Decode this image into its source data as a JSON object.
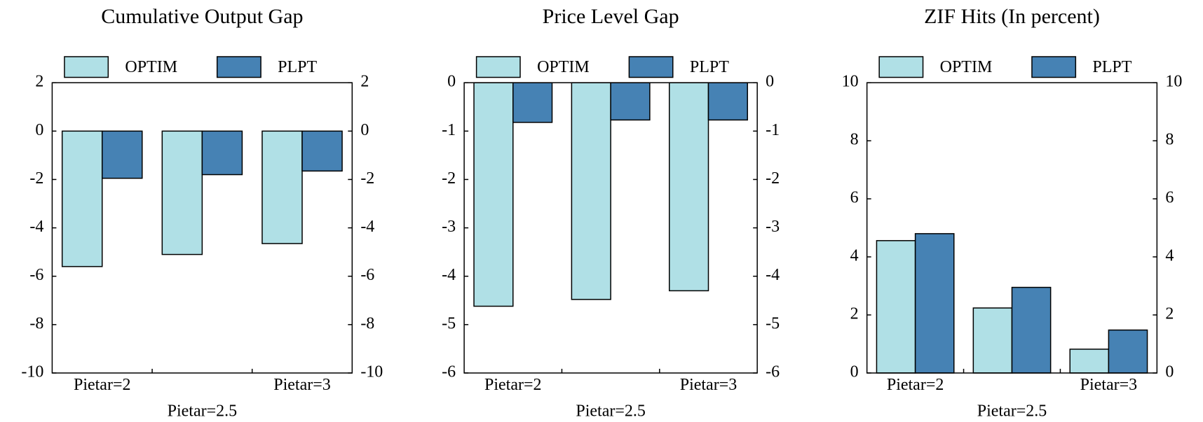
{
  "chart_data": [
    {
      "type": "bar",
      "title": "Cumulative Output Gap",
      "categories": [
        "Pietar=2",
        "Pietar=2.5",
        "Pietar=3"
      ],
      "series": [
        {
          "name": "OPTIM",
          "color": "#b0e0e6",
          "values": [
            -5.6,
            -5.1,
            -4.65
          ]
        },
        {
          "name": "PLPT",
          "color": "#4682b4",
          "values": [
            -1.95,
            -1.8,
            -1.65
          ]
        }
      ],
      "ylim": [
        -10,
        2
      ],
      "yticks": [
        -10,
        -8,
        -6,
        -4,
        -2,
        0,
        2
      ],
      "legend": "top"
    },
    {
      "type": "bar",
      "title": "Price Level Gap",
      "categories": [
        "Pietar=2",
        "Pietar=2.5",
        "Pietar=3"
      ],
      "series": [
        {
          "name": "OPTIM",
          "color": "#b0e0e6",
          "values": [
            -4.62,
            -4.48,
            -4.3
          ]
        },
        {
          "name": "PLPT",
          "color": "#4682b4",
          "values": [
            -0.82,
            -0.77,
            -0.77
          ]
        }
      ],
      "ylim": [
        -6,
        0
      ],
      "yticks": [
        -6,
        -5,
        -4,
        -3,
        -2,
        -1,
        0
      ],
      "legend": "top"
    },
    {
      "type": "bar",
      "title": "ZIF Hits (In percent)",
      "categories": [
        "Pietar=2",
        "Pietar=2.5",
        "Pietar=3"
      ],
      "series": [
        {
          "name": "OPTIM",
          "color": "#b0e0e6",
          "values": [
            4.56,
            2.24,
            0.82
          ]
        },
        {
          "name": "PLPT",
          "color": "#4682b4",
          "values": [
            4.8,
            2.95,
            1.48
          ]
        }
      ],
      "ylim": [
        0,
        10
      ],
      "yticks": [
        0,
        2,
        4,
        6,
        8,
        10
      ],
      "legend": "top"
    }
  ]
}
